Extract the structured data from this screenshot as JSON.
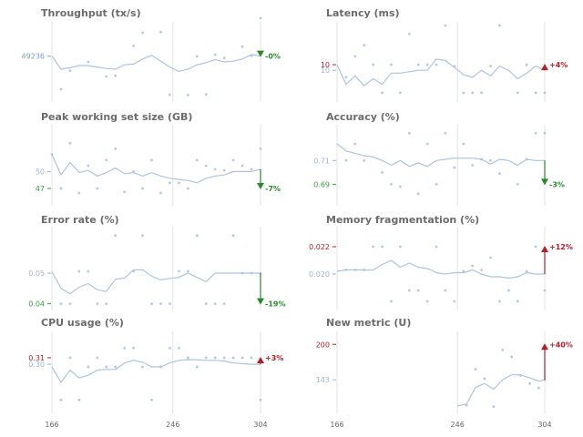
{
  "colors": {
    "line": "#aec3df",
    "dots": "#b8c8de",
    "vline": "#e3e3e3",
    "title": "#6b6b6b",
    "up": "#b0202a",
    "down": "#2a8a2a",
    "tick_blue": "#9db3d6",
    "axis_label": "#666666"
  },
  "x_axis_ticks": [
    "166",
    "246",
    "304"
  ],
  "chart_data": [
    {
      "type": "line",
      "title": "Throughput (tx/s)",
      "xlim": [
        166,
        304
      ],
      "ylim": [
        49120,
        49320
      ],
      "yticks": [
        {
          "value": 49236,
          "label": "49236",
          "color": "#3a9a3a"
        },
        {
          "value": 49236,
          "label": "49236",
          "color": "#9db3d6"
        }
      ],
      "series": [
        {
          "x": [
            166,
            172,
            178,
            184,
            190,
            196,
            202,
            208,
            214,
            220,
            226,
            232,
            238,
            244,
            250,
            256,
            262,
            268,
            274,
            280,
            286,
            292,
            298,
            304
          ],
          "y": [
            49236,
            49200,
            49204,
            49210,
            49210,
            49206,
            49202,
            49200,
            49212,
            49214,
            49228,
            49238,
            49222,
            49206,
            49194,
            49200,
            49212,
            49218,
            49226,
            49220,
            49222,
            49228,
            49240,
            49236
          ]
        }
      ],
      "scatter": {
        "x": [
          172,
          178,
          190,
          202,
          208,
          220,
          226,
          238,
          244,
          256,
          262,
          268,
          274,
          280,
          292,
          298,
          304
        ],
        "y": [
          49145,
          49196,
          49220,
          49180,
          49182,
          49264,
          49300,
          49302,
          49130,
          49129,
          49235,
          49131,
          49240,
          49231,
          49262,
          49237,
          49340
        ]
      },
      "end_delta": {
        "label": "-0%",
        "direction": "down",
        "from": 49236,
        "to": 49236
      }
    },
    {
      "type": "line",
      "title": "Latency (ms)",
      "xlim": [
        166,
        304
      ],
      "ylim": [
        7.6,
        12.8
      ],
      "yticks": [
        {
          "value": 10,
          "label": "10",
          "color": "#b0202a"
        },
        {
          "value": 9.6,
          "label": "10",
          "color": "#9db3d6"
        }
      ],
      "series": [
        {
          "x": [
            166,
            172,
            178,
            184,
            190,
            196,
            202,
            208,
            214,
            220,
            226,
            232,
            238,
            244,
            250,
            256,
            262,
            268,
            274,
            280,
            286,
            292,
            298,
            304
          ],
          "y": [
            10,
            8.6,
            9.2,
            8.5,
            9.0,
            8.6,
            9.4,
            9.4,
            9.5,
            9.6,
            9.6,
            10.4,
            10.3,
            9.8,
            9.3,
            9.1,
            9.6,
            9.2,
            9.9,
            9.6,
            9.0,
            9.4,
            9.9,
            9.6
          ]
        }
      ],
      "scatter": {
        "x": [
          172,
          178,
          184,
          190,
          196,
          202,
          208,
          214,
          220,
          226,
          232,
          238,
          244,
          250,
          256,
          262,
          268,
          274,
          286,
          292,
          298,
          304
        ],
        "y": [
          9.1,
          10.6,
          11.4,
          10.0,
          8.0,
          10.0,
          8.0,
          12.2,
          10.0,
          10.0,
          10.0,
          12.8,
          9.9,
          8.0,
          8.0,
          8.0,
          9.9,
          12.8,
          8.0,
          10.0,
          8.0,
          8.0
        ]
      },
      "end_delta": {
        "label": "+4%",
        "direction": "up",
        "from": 9.6,
        "to": 10
      }
    },
    {
      "type": "line",
      "title": "Peak working set size (GB)",
      "xlim": [
        166,
        304
      ],
      "ylim": [
        44.6,
        57.6
      ],
      "yticks": [
        {
          "value": 50,
          "label": "50",
          "color": "#9db3d6"
        },
        {
          "value": 47,
          "label": "47",
          "color": "#3a9a3a"
        }
      ],
      "series": [
        {
          "x": [
            166,
            172,
            178,
            184,
            190,
            196,
            202,
            208,
            214,
            220,
            226,
            232,
            238,
            244,
            250,
            256,
            262,
            268,
            274,
            280,
            286,
            292,
            298,
            304
          ],
          "y": [
            53.0,
            49.4,
            51.6,
            49.8,
            50.2,
            49.2,
            49.8,
            50.6,
            49.6,
            49.8,
            49.2,
            49.8,
            49.2,
            48.8,
            48.6,
            48.4,
            48.0,
            48.8,
            49.2,
            49.4,
            50.0,
            50.0,
            50.0,
            50.4
          ]
        }
      ],
      "scatter": {
        "x": [
          166,
          172,
          178,
          184,
          190,
          196,
          202,
          208,
          214,
          220,
          226,
          232,
          238,
          244,
          250,
          256,
          262,
          268,
          274,
          280,
          286,
          292,
          298,
          304
        ],
        "y": [
          53.0,
          47.0,
          55.0,
          46.2,
          51.0,
          47.0,
          52.0,
          54.0,
          46.4,
          50.0,
          47.0,
          52.0,
          46.2,
          48.0,
          48.0,
          47.0,
          52.0,
          51.0,
          50.4,
          50.2,
          52.0,
          51.0,
          50.4,
          54.0
        ]
      },
      "end_delta": {
        "label": "-7%",
        "direction": "down",
        "from": 50.4,
        "to": 47
      }
    },
    {
      "type": "line",
      "title": "Accuracy (%)",
      "xlim": [
        166,
        304
      ],
      "ylim": [
        0.675,
        0.737
      ],
      "yticks": [
        {
          "value": 0.71,
          "label": "0.71",
          "color": "#9db3d6"
        },
        {
          "value": 0.69,
          "label": "0.69",
          "color": "#3a9a3a"
        }
      ],
      "series": [
        {
          "x": [
            166,
            172,
            178,
            184,
            190,
            196,
            202,
            208,
            214,
            220,
            226,
            232,
            238,
            244,
            250,
            256,
            262,
            268,
            274,
            280,
            286,
            292,
            298,
            304
          ],
          "y": [
            0.724,
            0.718,
            0.716,
            0.714,
            0.713,
            0.71,
            0.706,
            0.71,
            0.705,
            0.708,
            0.705,
            0.71,
            0.711,
            0.712,
            0.712,
            0.712,
            0.711,
            0.707,
            0.711,
            0.71,
            0.706,
            0.711,
            0.71,
            0.71
          ]
        }
      ],
      "scatter": {
        "x": [
          172,
          178,
          184,
          196,
          202,
          208,
          214,
          220,
          226,
          232,
          238,
          244,
          250,
          256,
          262,
          268,
          274,
          286,
          292,
          298,
          304
        ],
        "y": [
          0.71,
          0.724,
          0.71,
          0.7,
          0.69,
          0.688,
          0.733,
          0.682,
          0.724,
          0.69,
          0.733,
          0.704,
          0.724,
          0.706,
          0.711,
          0.71,
          0.699,
          0.69,
          0.711,
          0.733,
          0.733
        ]
      },
      "end_delta": {
        "label": "-3%",
        "direction": "down",
        "from": 0.71,
        "to": 0.69
      }
    },
    {
      "type": "line",
      "title": "Error rate (%)",
      "xlim": [
        166,
        304
      ],
      "ylim": [
        0.039,
        0.064
      ],
      "yticks": [
        {
          "value": 0.05,
          "label": "0.05",
          "color": "#9db3d6"
        },
        {
          "value": 0.04,
          "label": "0.04",
          "color": "#3a9a3a"
        }
      ],
      "series": [
        {
          "x": [
            166,
            172,
            178,
            184,
            190,
            196,
            202,
            208,
            214,
            220,
            226,
            232,
            238,
            244,
            250,
            256,
            262,
            268,
            274,
            280,
            286,
            292,
            298,
            304
          ],
          "y": [
            0.0505,
            0.045,
            0.0433,
            0.0454,
            0.0466,
            0.0446,
            0.044,
            0.048,
            0.0484,
            0.0511,
            0.0511,
            0.049,
            0.0478,
            0.0483,
            0.0486,
            0.05,
            0.0486,
            0.0472,
            0.05,
            0.05,
            0.05,
            0.05,
            0.05,
            0.05
          ]
        }
      ],
      "scatter": {
        "x": [
          172,
          178,
          184,
          190,
          196,
          202,
          208,
          220,
          226,
          232,
          238,
          244,
          250,
          256,
          262,
          268,
          274,
          280,
          286,
          292,
          298,
          304
        ],
        "y": [
          0.04,
          0.04,
          0.0506,
          0.0506,
          0.04,
          0.04,
          0.0623,
          0.0506,
          0.0623,
          0.04,
          0.04,
          0.04,
          0.0506,
          0.0506,
          0.0623,
          0.04,
          0.04,
          0.04,
          0.0623,
          0.05,
          0.05,
          0.05
        ]
      },
      "end_delta": {
        "label": "-19%",
        "direction": "down",
        "from": 0.05,
        "to": 0.04
      }
    },
    {
      "type": "line",
      "title": "Memory fragmentation (%)",
      "xlim": [
        166,
        304
      ],
      "ylim": [
        0.0176,
        0.0232
      ],
      "yticks": [
        {
          "value": 0.022,
          "label": "0.022",
          "color": "#b0202a"
        },
        {
          "value": 0.02,
          "label": "0.020",
          "color": "#9db3d6"
        }
      ],
      "series": [
        {
          "x": [
            166,
            172,
            178,
            184,
            190,
            196,
            202,
            208,
            214,
            220,
            226,
            232,
            238,
            244,
            250,
            256,
            262,
            268,
            274,
            280,
            286,
            292,
            298,
            304
          ],
          "y": [
            0.0202,
            0.0203,
            0.0203,
            0.0203,
            0.0203,
            0.0207,
            0.021,
            0.0205,
            0.0208,
            0.0205,
            0.0204,
            0.0201,
            0.02,
            0.0201,
            0.0201,
            0.0203,
            0.02,
            0.0198,
            0.0198,
            0.0197,
            0.0198,
            0.0201,
            0.02,
            0.02
          ]
        }
      ],
      "scatter": {
        "x": [
          172,
          178,
          184,
          190,
          196,
          202,
          208,
          214,
          220,
          226,
          232,
          238,
          244,
          250,
          256,
          262,
          268,
          274,
          280,
          286,
          292,
          298,
          304
        ],
        "y": [
          0.0203,
          0.0203,
          0.0203,
          0.022,
          0.022,
          0.018,
          0.022,
          0.0188,
          0.0188,
          0.018,
          0.022,
          0.0188,
          0.018,
          0.0202,
          0.0206,
          0.0203,
          0.0212,
          0.018,
          0.0188,
          0.018,
          0.0202,
          0.022,
          0.0188
        ]
      },
      "end_delta": {
        "label": "+12%",
        "direction": "up",
        "from": 0.02,
        "to": 0.022
      }
    },
    {
      "type": "line",
      "title": "CPU usage (%)",
      "xlim": [
        166,
        304
      ],
      "ylim": [
        0.23,
        0.345
      ],
      "yticks": [
        {
          "value": 0.31,
          "label": "0.31",
          "color": "#b0202a"
        },
        {
          "value": 0.3,
          "label": "0.30",
          "color": "#9db3d6"
        }
      ],
      "series": [
        {
          "x": [
            166,
            172,
            178,
            184,
            190,
            196,
            202,
            208,
            214,
            220,
            226,
            232,
            238,
            244,
            250,
            256,
            262,
            268,
            274,
            280,
            286,
            292,
            298,
            304
          ],
          "y": [
            0.296,
            0.272,
            0.291,
            0.279,
            0.283,
            0.291,
            0.292,
            0.292,
            0.302,
            0.306,
            0.303,
            0.296,
            0.296,
            0.302,
            0.306,
            0.307,
            0.307,
            0.306,
            0.306,
            0.305,
            0.302,
            0.301,
            0.3,
            0.3
          ]
        }
      ],
      "scatter": {
        "x": [
          172,
          178,
          184,
          190,
          196,
          202,
          208,
          214,
          220,
          226,
          232,
          238,
          244,
          250,
          256,
          262,
          268,
          274,
          280,
          286,
          292,
          298,
          304
        ],
        "y": [
          0.245,
          0.31,
          0.245,
          0.296,
          0.31,
          0.296,
          0.296,
          0.325,
          0.325,
          0.296,
          0.245,
          0.296,
          0.325,
          0.325,
          0.31,
          0.296,
          0.31,
          0.31,
          0.31,
          0.31,
          0.31,
          0.31,
          0.245
        ]
      },
      "end_delta": {
        "label": "+3%",
        "direction": "up",
        "from": 0.3,
        "to": 0.31
      }
    },
    {
      "type": "line",
      "title": "New metric (U)",
      "xlim": [
        166,
        304
      ],
      "ylim": [
        95,
        215
      ],
      "yticks": [
        {
          "value": 200,
          "label": "200",
          "color": "#b0202a"
        },
        {
          "value": 143,
          "label": "143",
          "color": "#9db3d6"
        }
      ],
      "series": [
        {
          "x": [
            246,
            252,
            258,
            264,
            270,
            276,
            282,
            288,
            294,
            300,
            304
          ],
          "y": [
            101,
            104,
            131,
            137,
            128,
            143,
            151,
            151,
            146,
            141,
            143
          ]
        }
      ],
      "scatter": {
        "x": [
          252,
          258,
          264,
          270,
          276,
          282,
          288,
          294,
          300,
          304
        ],
        "y": [
          102,
          160,
          145,
          100,
          191,
          180,
          150,
          137,
          130,
          143
        ]
      },
      "end_delta": {
        "label": "+40%",
        "direction": "up",
        "from": 143,
        "to": 200
      }
    }
  ]
}
